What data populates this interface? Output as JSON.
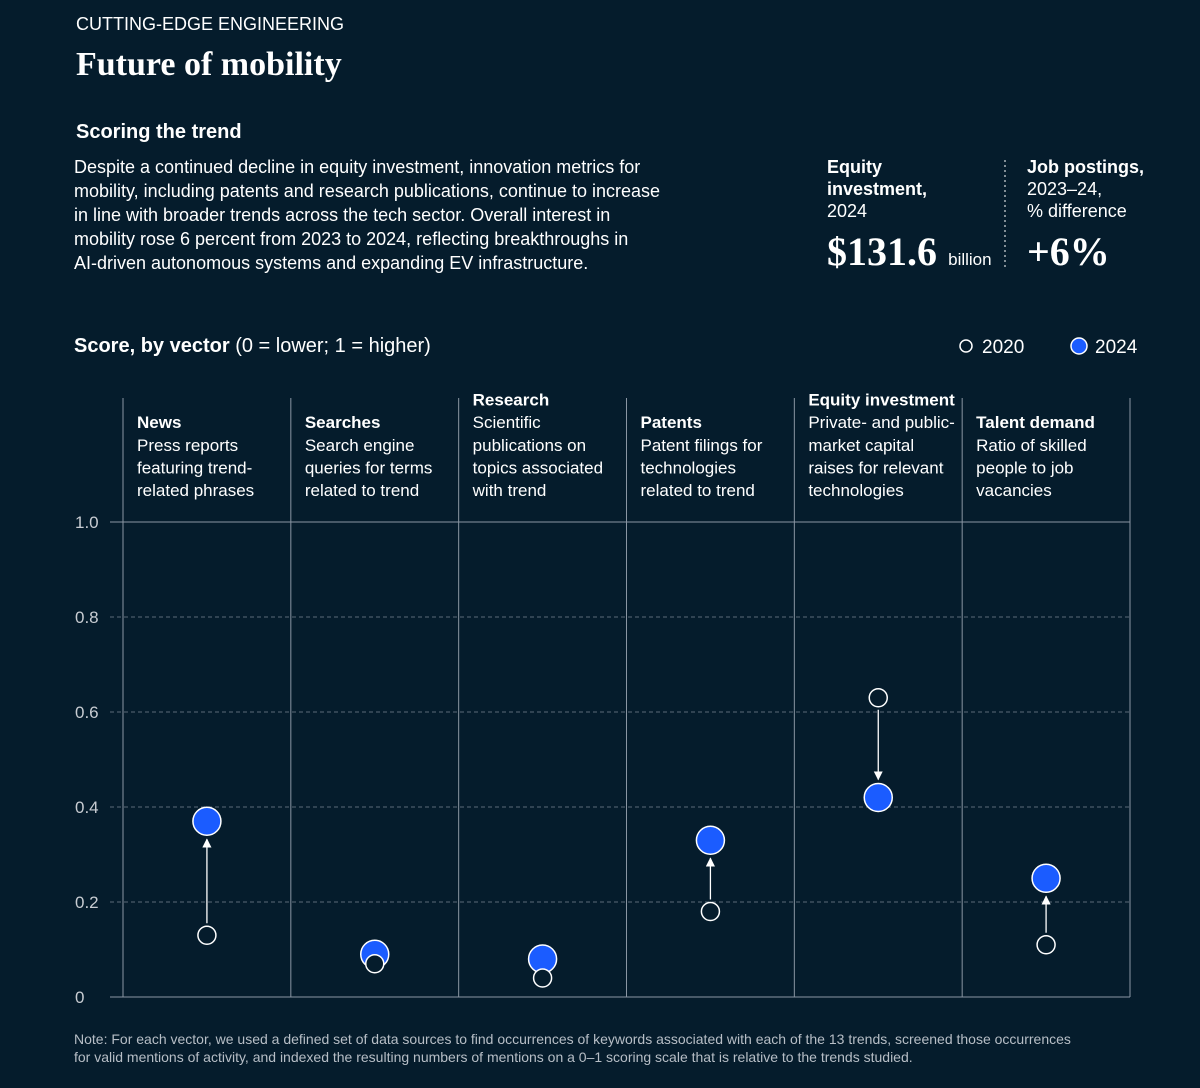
{
  "header": {
    "eyebrow": "CUTTING-EDGE ENGINEERING",
    "title": "Future of mobility",
    "section": "Scoring the trend",
    "body": [
      "Despite a continued decline in equity investment, innovation metrics for",
      "mobility, including patents and research publications, continue to increase",
      "in line with broader trends across the tech sector. Overall interest in",
      "mobility rose 6 percent from 2023 to 2024, reflecting breakthroughs in",
      "AI-driven autonomous systems and expanding EV infrastructure."
    ]
  },
  "stats": [
    {
      "label": [
        "Equity",
        "investment,"
      ],
      "sublabel": [
        "2024"
      ],
      "value": "$131.6",
      "unit": "billion"
    },
    {
      "label": [
        "Job postings,"
      ],
      "sublabel": [
        "2023–24,",
        "% difference"
      ],
      "value": "+6%"
    }
  ],
  "chart_data": {
    "type": "dumbbell",
    "title": "Score, by vector",
    "subtitle": "(0 = lower; 1 = higher)",
    "categories": [
      "News",
      "Searches",
      "Research",
      "Patents",
      "Equity investment",
      "Talent demand"
    ],
    "descriptions": [
      [
        "Press reports",
        "featuring trend-",
        "related phrases"
      ],
      [
        "Search engine",
        "queries for terms",
        "related to trend"
      ],
      [
        "Scientific",
        "publications on",
        "topics associated",
        "with trend"
      ],
      [
        "Patent filings for",
        "technologies",
        "related to trend"
      ],
      [
        "Private- and public-",
        "market capital",
        "raises for relevant",
        "technologies"
      ],
      [
        "Ratio of skilled",
        "people to job",
        "vacancies"
      ]
    ],
    "series": [
      {
        "name": "2020",
        "color": "#051c2c",
        "values": [
          0.13,
          0.07,
          0.04,
          0.18,
          0.63,
          0.11
        ]
      },
      {
        "name": "2024",
        "color": "#1b5cff",
        "values": [
          0.37,
          0.09,
          0.08,
          0.33,
          0.42,
          0.25
        ]
      }
    ],
    "ylim": [
      0,
      1
    ],
    "yticks": [
      0,
      0.2,
      0.4,
      0.6,
      0.8,
      {
        "value": 1,
        "label": "1.0"
      }
    ],
    "grid": true,
    "note": [
      "Note: For each vector, we used a defined set of data sources to find occurrences of keywords associated with each of the 13 trends, screened those occurrences",
      "for valid mentions of activity, and indexed the resulting numbers of mentions on a 0–1 scoring scale that is relative to the trends studied."
    ]
  }
}
